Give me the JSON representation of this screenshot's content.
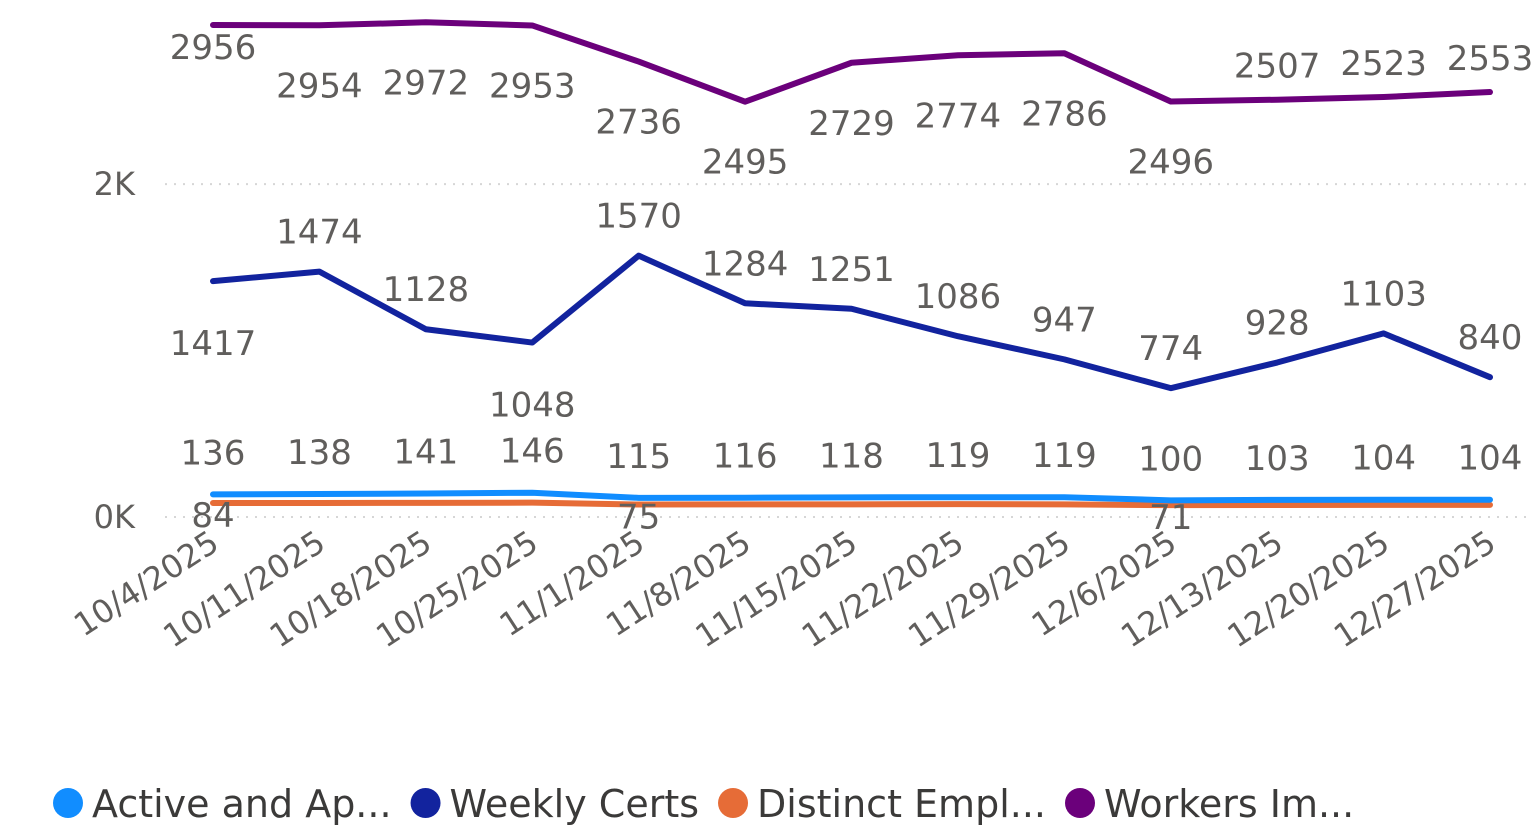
{
  "chart_data": {
    "type": "line",
    "categories": [
      "10/4/2025",
      "10/11/2025",
      "10/18/2025",
      "10/25/2025",
      "11/1/2025",
      "11/8/2025",
      "11/15/2025",
      "11/22/2025",
      "11/29/2025",
      "12/6/2025",
      "12/13/2025",
      "12/20/2025",
      "12/27/2025"
    ],
    "ylim": [
      0,
      3100
    ],
    "yticks": [
      {
        "value": 0,
        "label": "0K"
      },
      {
        "value": 2000,
        "label": "2K"
      }
    ],
    "grid": true,
    "legend": "bottom",
    "series": [
      {
        "name": "Active and Ap...",
        "color": "#118DFF",
        "values": [
          136,
          138,
          141,
          146,
          115,
          116,
          118,
          119,
          119,
          100,
          103,
          104,
          104
        ]
      },
      {
        "name": "Weekly Certs",
        "color": "#12239E",
        "values": [
          1417,
          1474,
          1128,
          1048,
          1570,
          1284,
          1251,
          1086,
          947,
          774,
          928,
          1103,
          840
        ]
      },
      {
        "name": "Distinct Empl...",
        "color": "#E66C37",
        "values": [
          84,
          84,
          85,
          86,
          75,
          76,
          76,
          77,
          76,
          71,
          72,
          73,
          73
        ],
        "value_labels": [
          "84",
          null,
          null,
          null,
          "75",
          null,
          null,
          null,
          null,
          "71",
          null,
          null,
          null
        ]
      },
      {
        "name": "Workers Im...",
        "color": "#6B007B",
        "values": [
          2956,
          2954,
          2972,
          2953,
          2736,
          2495,
          2729,
          2774,
          2786,
          2496,
          2507,
          2523,
          2553
        ]
      }
    ]
  }
}
